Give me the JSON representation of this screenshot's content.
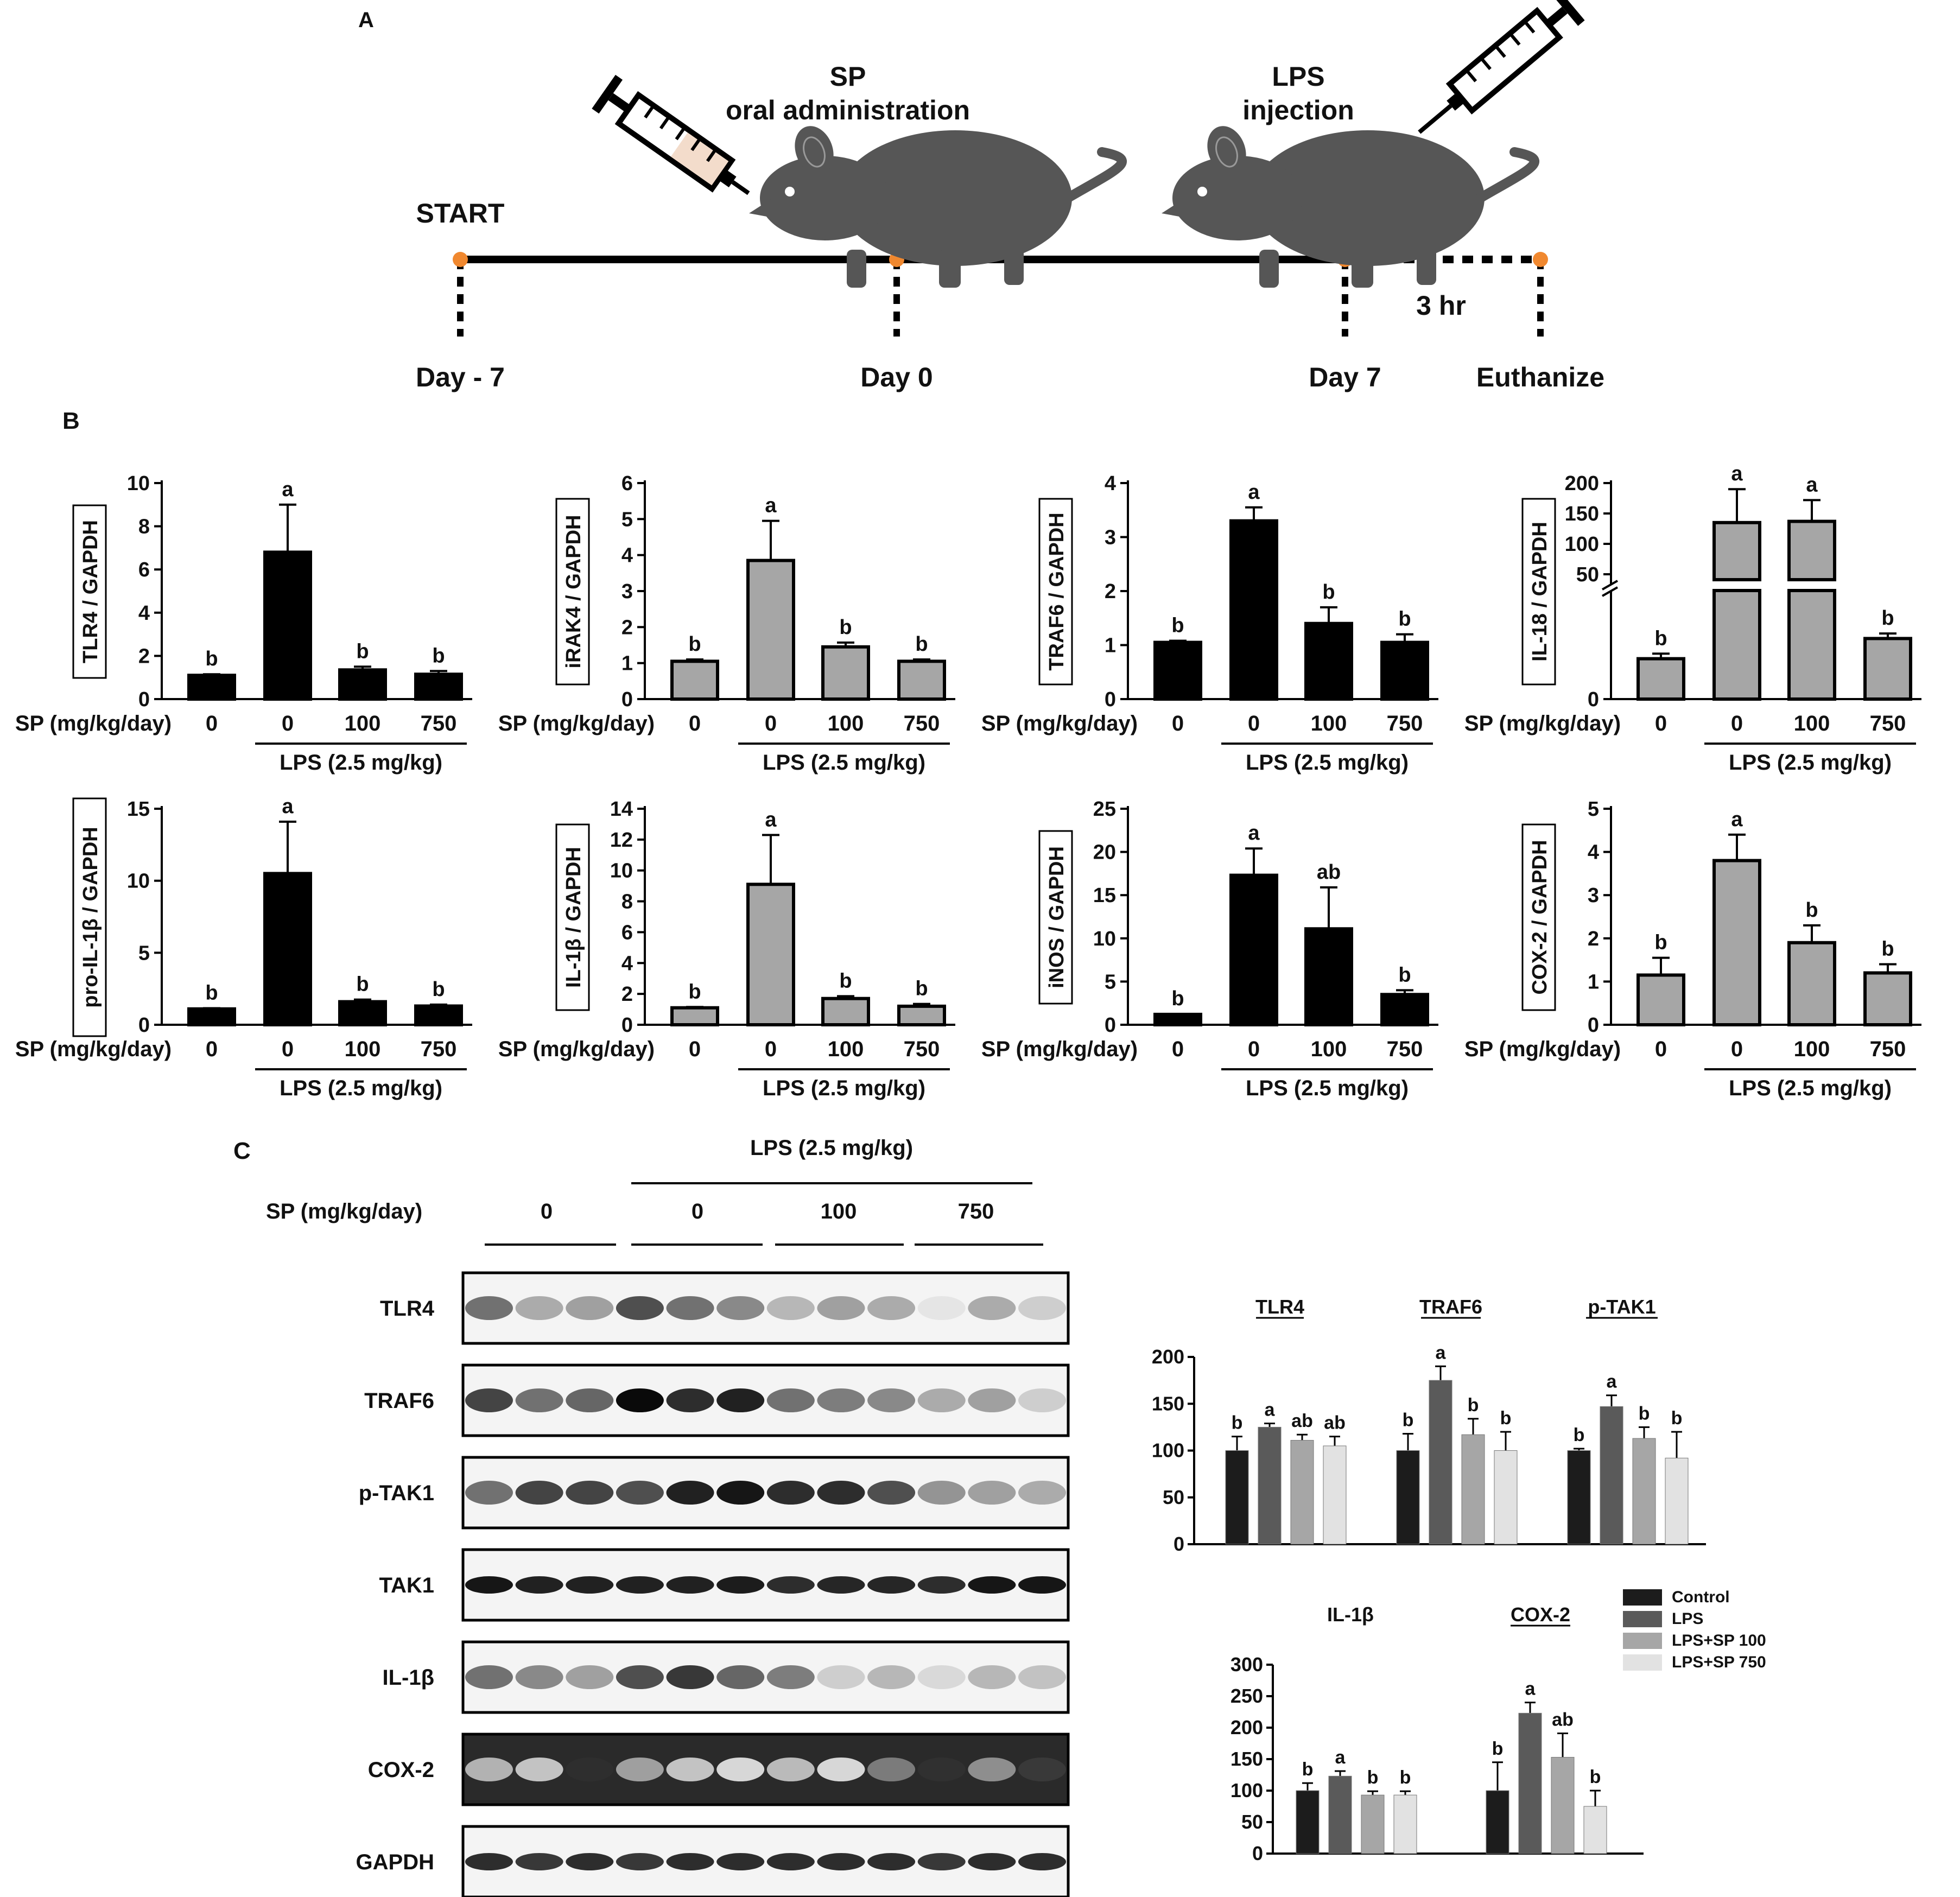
{
  "panel_a": {
    "label": "A",
    "start": "START",
    "sp_title_1": "SP",
    "sp_title_2": "oral administration",
    "lps_title_1": "LPS",
    "lps_title_2": "injection",
    "day_minus7": "Day - 7",
    "day_0": "Day 0",
    "day_7": "Day 7",
    "euthanize": "Euthanize",
    "duration": "3 hr",
    "colors": {
      "dot": "#f0882f",
      "mouse": "#565656",
      "syringe_fill": "#f3dccb"
    }
  },
  "panel_b": {
    "label": "B",
    "sp_axis_label": "SP (mg/kg/day)",
    "lps_group_label": "LPS (2.5 mg/kg)",
    "dose_labels": [
      "0",
      "0",
      "100",
      "750"
    ]
  },
  "panel_c": {
    "label": "C",
    "lps_header": "LPS (2.5 mg/kg)",
    "sp_header": "SP (mg/kg/day)",
    "dose_labels": [
      "0",
      "0",
      "100",
      "750"
    ],
    "blot_rows": [
      "TLR4",
      "TRAF6",
      "p-TAK1",
      "TAK1",
      "IL-1β",
      "COX-2",
      "GAPDH"
    ],
    "legend": [
      {
        "name": "Control",
        "color": "#1c1c1c"
      },
      {
        "name": "LPS",
        "color": "#5a5a5a"
      },
      {
        "name": "LPS+SP 100",
        "color": "#a6a6a6"
      },
      {
        "name": "LPS+SP 750",
        "color": "#e2e2e2"
      }
    ]
  },
  "chart_data": [
    {
      "type": "bar",
      "panel": "B",
      "ylabel": "TLR4 / GAPDH",
      "categories": [
        "0",
        "0",
        "100",
        "750"
      ],
      "values": [
        1.1,
        6.8,
        1.35,
        1.15
      ],
      "errors": [
        0.05,
        2.2,
        0.15,
        0.15
      ],
      "letters": [
        "b",
        "a",
        "b",
        "b"
      ],
      "ylim": [
        0,
        10
      ],
      "yticks": [
        "0",
        "2",
        "4",
        "6",
        "8",
        "10"
      ],
      "color": "black"
    },
    {
      "type": "bar",
      "panel": "B",
      "ylabel": "iRAK4 / GAPDH",
      "categories": [
        "0",
        "0",
        "100",
        "750"
      ],
      "values": [
        1.05,
        3.85,
        1.45,
        1.05
      ],
      "errors": [
        0.05,
        1.1,
        0.12,
        0.05
      ],
      "letters": [
        "b",
        "a",
        "b",
        "b"
      ],
      "ylim": [
        0,
        6
      ],
      "yticks": [
        "0",
        "1",
        "2",
        "3",
        "4",
        "5",
        "6"
      ],
      "color": "gray"
    },
    {
      "type": "bar",
      "panel": "B",
      "ylabel": "TRAF6 / GAPDH",
      "categories": [
        "0",
        "0",
        "100",
        "750"
      ],
      "values": [
        1.05,
        3.3,
        1.4,
        1.05
      ],
      "errors": [
        0.03,
        0.25,
        0.3,
        0.15
      ],
      "letters": [
        "b",
        "a",
        "b",
        "b"
      ],
      "ylim": [
        0,
        4
      ],
      "yticks": [
        "0",
        "1",
        "2",
        "3",
        "4"
      ],
      "color": "black"
    },
    {
      "type": "bar",
      "panel": "B",
      "ylabel": "IL-18 / GAPDH",
      "categories": [
        "0",
        "0",
        "100",
        "750"
      ],
      "values": [
        8,
        135,
        137,
        12
      ],
      "errors": [
        1,
        55,
        35,
        1
      ],
      "letters": [
        "b",
        "a",
        "a",
        "b"
      ],
      "yticks": [
        "0",
        "50",
        "100",
        "150",
        "200"
      ],
      "broken_axis": true,
      "color": "gray"
    },
    {
      "type": "bar",
      "panel": "B",
      "ylabel": "pro-IL-1β / GAPDH",
      "categories": [
        "0",
        "0",
        "100",
        "750"
      ],
      "values": [
        1.1,
        10.5,
        1.6,
        1.3
      ],
      "errors": [
        0.05,
        3.6,
        0.15,
        0.1
      ],
      "letters": [
        "b",
        "a",
        "b",
        "b"
      ],
      "ylim": [
        0,
        15
      ],
      "yticks": [
        "0",
        "5",
        "10",
        "15"
      ],
      "color": "black"
    },
    {
      "type": "bar",
      "panel": "B",
      "ylabel": "IL-1β / GAPDH",
      "categories": [
        "0",
        "0",
        "100",
        "750"
      ],
      "values": [
        1.1,
        9.1,
        1.7,
        1.2
      ],
      "errors": [
        0.05,
        3.2,
        0.15,
        0.15
      ],
      "letters": [
        "b",
        "a",
        "b",
        "b"
      ],
      "ylim": [
        0,
        14
      ],
      "yticks": [
        "0",
        "2",
        "4",
        "6",
        "8",
        "10",
        "12",
        "14"
      ],
      "color": "gray"
    },
    {
      "type": "bar",
      "panel": "B",
      "ylabel": "iNOS / GAPDH",
      "categories": [
        "0",
        "0",
        "100",
        "750"
      ],
      "values": [
        1.2,
        17.3,
        11.1,
        3.5
      ],
      "errors": [
        0.05,
        3.1,
        4.8,
        0.5
      ],
      "letters": [
        "b",
        "a",
        "ab",
        "b"
      ],
      "ylim": [
        0,
        25
      ],
      "yticks": [
        "0",
        "5",
        "10",
        "15",
        "20",
        "25"
      ],
      "color": "black"
    },
    {
      "type": "bar",
      "panel": "B",
      "ylabel": "COX-2 / GAPDH",
      "categories": [
        "0",
        "0",
        "100",
        "750"
      ],
      "values": [
        1.15,
        3.8,
        1.9,
        1.2
      ],
      "errors": [
        0.4,
        0.6,
        0.4,
        0.2
      ],
      "letters": [
        "b",
        "a",
        "b",
        "b"
      ],
      "ylim": [
        0,
        5
      ],
      "yticks": [
        "0",
        "1",
        "2",
        "3",
        "4",
        "5"
      ],
      "color": "gray"
    },
    {
      "type": "bar",
      "panel": "C",
      "categories": [
        "TLR4",
        "TRAF6",
        "p-TAK1"
      ],
      "ylim": [
        0,
        200
      ],
      "yticks": [
        "0",
        "50",
        "100",
        "150",
        "200"
      ],
      "series": [
        {
          "name": "Control",
          "values": [
            100,
            100,
            100
          ],
          "errors": [
            15,
            18,
            2
          ],
          "letters": [
            "b",
            "b",
            "b"
          ]
        },
        {
          "name": "LPS",
          "values": [
            125,
            175,
            147
          ],
          "errors": [
            4,
            15,
            12
          ],
          "letters": [
            "a",
            "a",
            "a"
          ]
        },
        {
          "name": "LPS+SP 100",
          "values": [
            111,
            117,
            113
          ],
          "errors": [
            6,
            17,
            12
          ],
          "letters": [
            "ab",
            "b",
            "b"
          ]
        },
        {
          "name": "LPS+SP 750",
          "values": [
            105,
            100,
            92
          ],
          "errors": [
            10,
            20,
            28
          ],
          "letters": [
            "ab",
            "b",
            "b"
          ]
        }
      ]
    },
    {
      "type": "bar",
      "panel": "C",
      "categories": [
        "IL-1β",
        "COX-2"
      ],
      "ylim": [
        0,
        300
      ],
      "yticks": [
        "0",
        "50",
        "100",
        "150",
        "200",
        "250",
        "300"
      ],
      "series": [
        {
          "name": "Control",
          "values": [
            100,
            100
          ],
          "errors": [
            12,
            45
          ],
          "letters": [
            "b",
            "b"
          ]
        },
        {
          "name": "LPS",
          "values": [
            123,
            223
          ],
          "errors": [
            8,
            17
          ],
          "letters": [
            "a",
            "a"
          ]
        },
        {
          "name": "LPS+SP 100",
          "values": [
            93,
            153
          ],
          "errors": [
            6,
            38
          ],
          "letters": [
            "b",
            "ab"
          ]
        },
        {
          "name": "LPS+SP 750",
          "values": [
            93,
            75
          ],
          "errors": [
            6,
            25
          ],
          "letters": [
            "b",
            "b"
          ]
        }
      ]
    }
  ],
  "blot_intensity": {
    "TLR4": [
      0.55,
      0.3,
      0.35,
      0.7,
      0.55,
      0.45,
      0.25,
      0.35,
      0.3,
      0.05,
      0.3,
      0.15
    ],
    "TRAF6": [
      0.75,
      0.55,
      0.6,
      1.0,
      0.85,
      0.9,
      0.55,
      0.5,
      0.45,
      0.3,
      0.35,
      0.15
    ],
    "p-TAK1": [
      0.55,
      0.75,
      0.75,
      0.7,
      0.9,
      0.95,
      0.85,
      0.85,
      0.7,
      0.4,
      0.35,
      0.3
    ],
    "TAK1": [
      0.95,
      0.9,
      0.9,
      0.9,
      0.9,
      0.92,
      0.85,
      0.88,
      0.88,
      0.85,
      0.95,
      0.95
    ],
    "IL-1β": [
      0.55,
      0.45,
      0.35,
      0.7,
      0.8,
      0.6,
      0.5,
      0.15,
      0.25,
      0.1,
      0.25,
      0.2
    ],
    "COX-2": [
      0.75,
      0.85,
      0.02,
      0.65,
      0.85,
      0.95,
      0.8,
      0.95,
      0.45,
      0.03,
      0.55,
      0.08
    ],
    "GAPDH": [
      0.85,
      0.8,
      0.85,
      0.8,
      0.85,
      0.85,
      0.85,
      0.85,
      0.85,
      0.8,
      0.85,
      0.85
    ]
  }
}
